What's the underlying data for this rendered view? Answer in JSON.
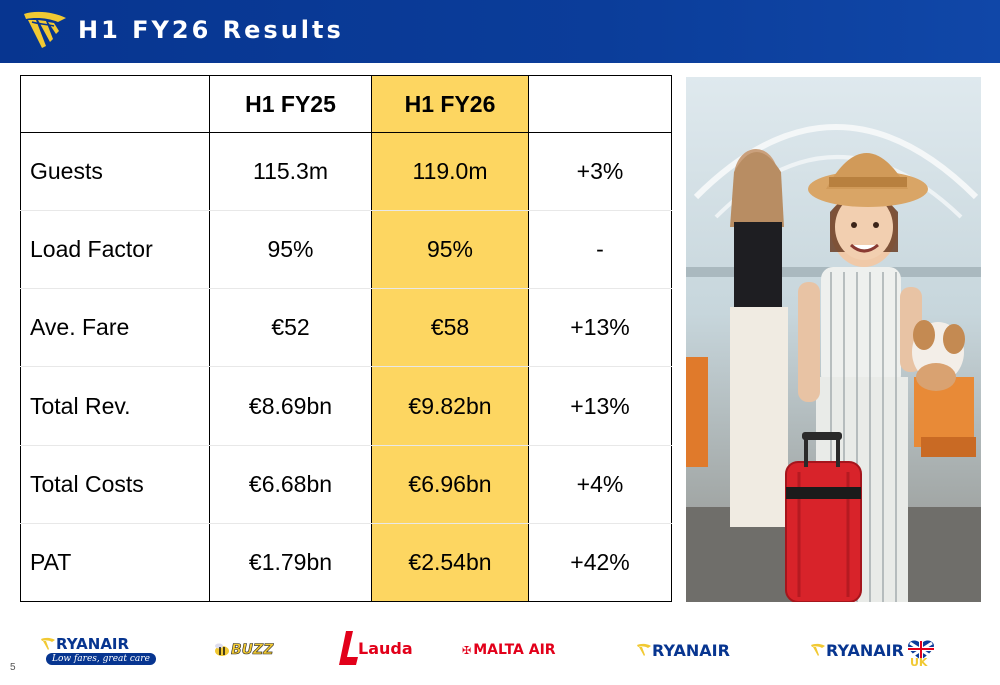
{
  "header": {
    "title": "H1 FY26 Results"
  },
  "table": {
    "columns": [
      "",
      "H1 FY25",
      "H1 FY26",
      ""
    ],
    "rows": [
      {
        "metric": "Guests",
        "fy25": "115.3m",
        "fy26": "119.0m",
        "change": "+3%"
      },
      {
        "metric": "Load Factor",
        "fy25": "95%",
        "fy26": "95%",
        "change": "-"
      },
      {
        "metric": "Ave. Fare",
        "fy25": "€52",
        "fy26": "€58",
        "change": "+13%"
      },
      {
        "metric": "Total Rev.",
        "fy25": "€8.69bn",
        "fy26": "€9.82bn",
        "change": "+13%"
      },
      {
        "metric": "Total Costs",
        "fy25": "€6.68bn",
        "fy26": "€6.96bn",
        "change": "+4%"
      },
      {
        "metric": "PAT",
        "fy25": "€1.79bn",
        "fy26": "€2.54bn",
        "change": "+42%"
      }
    ]
  },
  "footer": {
    "page_number": "5",
    "brands": [
      {
        "name": "RYANAIR",
        "tagline": "Low fares, great care"
      },
      {
        "name": "BUZZ"
      },
      {
        "name": "Lauda"
      },
      {
        "name": "MALTA AIR"
      },
      {
        "name": "RYANAIR"
      },
      {
        "name": "RYANAIR",
        "suffix": "UK"
      }
    ]
  },
  "colors": {
    "header_blue": "#073590",
    "highlight_yellow": "#fdd661",
    "ryanair_yellow": "#f1c933",
    "lauda_red": "#e2001a"
  }
}
